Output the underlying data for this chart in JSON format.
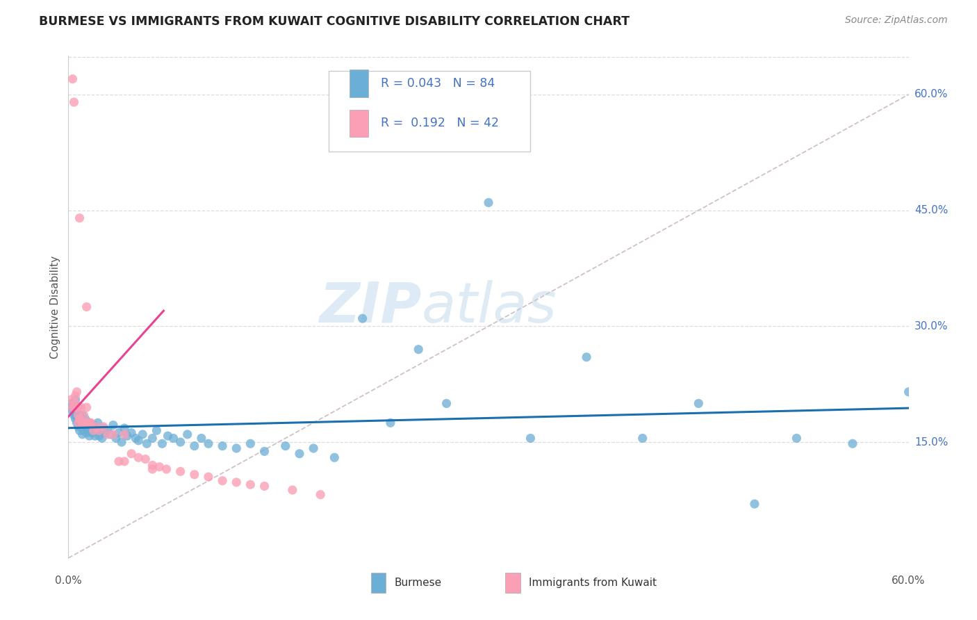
{
  "title": "BURMESE VS IMMIGRANTS FROM KUWAIT COGNITIVE DISABILITY CORRELATION CHART",
  "source": "Source: ZipAtlas.com",
  "ylabel": "Cognitive Disability",
  "ytick_labels": [
    "15.0%",
    "30.0%",
    "45.0%",
    "60.0%"
  ],
  "ytick_values": [
    0.15,
    0.3,
    0.45,
    0.6
  ],
  "xmin": 0.0,
  "xmax": 0.6,
  "ymin": 0.0,
  "ymax": 0.65,
  "legend_label1": "Burmese",
  "legend_label2": "Immigrants from Kuwait",
  "R1": 0.043,
  "N1": 84,
  "R2": 0.192,
  "N2": 42,
  "color1": "#6baed6",
  "color2": "#fa9fb5",
  "trendline1_color": "#1a6faf",
  "trendline2_color": "#e84393",
  "diag_color": "#d0c0c8",
  "watermark_zip": "ZIP",
  "watermark_atlas": "atlas",
  "burmese_x": [
    0.002,
    0.003,
    0.003,
    0.004,
    0.005,
    0.005,
    0.005,
    0.006,
    0.006,
    0.007,
    0.007,
    0.007,
    0.008,
    0.008,
    0.008,
    0.009,
    0.009,
    0.01,
    0.01,
    0.01,
    0.011,
    0.011,
    0.012,
    0.012,
    0.013,
    0.013,
    0.014,
    0.015,
    0.015,
    0.016,
    0.017,
    0.018,
    0.019,
    0.02,
    0.021,
    0.022,
    0.023,
    0.024,
    0.025,
    0.026,
    0.028,
    0.03,
    0.032,
    0.034,
    0.036,
    0.038,
    0.04,
    0.042,
    0.045,
    0.048,
    0.05,
    0.053,
    0.056,
    0.06,
    0.063,
    0.067,
    0.071,
    0.075,
    0.08,
    0.085,
    0.09,
    0.095,
    0.1,
    0.11,
    0.12,
    0.13,
    0.14,
    0.155,
    0.165,
    0.175,
    0.19,
    0.21,
    0.23,
    0.25,
    0.27,
    0.3,
    0.33,
    0.37,
    0.41,
    0.45,
    0.49,
    0.52,
    0.56,
    0.6
  ],
  "burmese_y": [
    0.2,
    0.19,
    0.195,
    0.185,
    0.18,
    0.185,
    0.205,
    0.175,
    0.19,
    0.17,
    0.18,
    0.195,
    0.165,
    0.175,
    0.185,
    0.17,
    0.18,
    0.16,
    0.175,
    0.185,
    0.165,
    0.175,
    0.168,
    0.18,
    0.162,
    0.172,
    0.165,
    0.175,
    0.158,
    0.168,
    0.162,
    0.172,
    0.158,
    0.165,
    0.175,
    0.158,
    0.165,
    0.155,
    0.168,
    0.162,
    0.165,
    0.16,
    0.172,
    0.155,
    0.162,
    0.15,
    0.168,
    0.158,
    0.162,
    0.155,
    0.152,
    0.16,
    0.148,
    0.155,
    0.165,
    0.148,
    0.158,
    0.155,
    0.15,
    0.16,
    0.145,
    0.155,
    0.148,
    0.145,
    0.142,
    0.148,
    0.138,
    0.145,
    0.135,
    0.142,
    0.13,
    0.31,
    0.175,
    0.27,
    0.2,
    0.46,
    0.155,
    0.26,
    0.155,
    0.2,
    0.07,
    0.155,
    0.148,
    0.215
  ],
  "kuwait_x": [
    0.002,
    0.003,
    0.004,
    0.005,
    0.005,
    0.006,
    0.006,
    0.007,
    0.007,
    0.007,
    0.008,
    0.009,
    0.01,
    0.011,
    0.012,
    0.013,
    0.014,
    0.015,
    0.016,
    0.018,
    0.02,
    0.022,
    0.025,
    0.028,
    0.032,
    0.036,
    0.04,
    0.045,
    0.05,
    0.055,
    0.06,
    0.065,
    0.07,
    0.08,
    0.09,
    0.1,
    0.11,
    0.12,
    0.13,
    0.14,
    0.16,
    0.18
  ],
  "kuwait_y": [
    0.205,
    0.195,
    0.195,
    0.2,
    0.21,
    0.195,
    0.215,
    0.185,
    0.195,
    0.175,
    0.18,
    0.195,
    0.175,
    0.185,
    0.175,
    0.195,
    0.175,
    0.175,
    0.175,
    0.165,
    0.17,
    0.165,
    0.17,
    0.16,
    0.16,
    0.125,
    0.125,
    0.135,
    0.13,
    0.128,
    0.12,
    0.118,
    0.115,
    0.112,
    0.108,
    0.105,
    0.1,
    0.098,
    0.095,
    0.093,
    0.088,
    0.082
  ],
  "kuwait_outliers_x": [
    0.003,
    0.004,
    0.008,
    0.013,
    0.04,
    0.06
  ],
  "kuwait_outliers_y": [
    0.62,
    0.59,
    0.44,
    0.325,
    0.16,
    0.115
  ]
}
